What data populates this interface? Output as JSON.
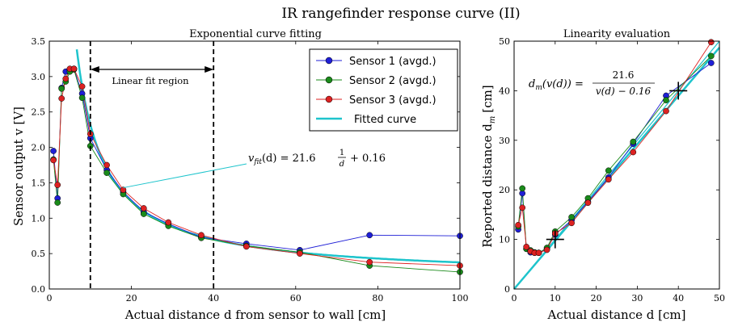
{
  "figure": {
    "title": "IR rangefinder response curve (II)"
  },
  "colors": {
    "s1": "#1f1fd6",
    "s2": "#1a8a1a",
    "s3": "#dd2222",
    "fit": "#1ec4cc",
    "grid": "#000000"
  },
  "chart_data": [
    {
      "type": "line",
      "title": "Exponential curve fitting",
      "xlabel": "Actual distance d from sensor to wall [cm]",
      "ylabel": "Sensor output v [V]",
      "xlim": [
        0,
        100
      ],
      "ylim": [
        0,
        3.5
      ],
      "xticks": [
        0,
        20,
        40,
        60,
        80,
        100
      ],
      "yticks": [
        0.0,
        0.5,
        1.0,
        1.5,
        2.0,
        2.5,
        3.0,
        3.5
      ],
      "ytick_labels": [
        "0.0",
        "0.5",
        "1.0",
        "1.5",
        "2.0",
        "2.5",
        "3.0",
        "3.5"
      ],
      "legend": [
        "Sensor 1 (avgd.)",
        "Sensor 2 (avgd.)",
        "Sensor 3 (avgd.)",
        "Fitted curve"
      ],
      "x": [
        1,
        2,
        3,
        4,
        5,
        6,
        8,
        10,
        14,
        18,
        23,
        29,
        37,
        48,
        61,
        78,
        100
      ],
      "series": [
        {
          "name": "Sensor 1 (avgd.)",
          "values": [
            1.95,
            1.28,
            2.84,
            3.07,
            3.1,
            3.11,
            2.76,
            2.13,
            1.68,
            1.37,
            1.09,
            0.92,
            0.73,
            0.64,
            0.55,
            0.76,
            0.75
          ]
        },
        {
          "name": "Sensor 2 (avgd.)",
          "values": [
            1.83,
            1.22,
            2.83,
            2.93,
            3.07,
            3.1,
            2.7,
            2.02,
            1.64,
            1.34,
            1.06,
            0.89,
            0.72,
            0.61,
            0.52,
            0.33,
            0.24
          ]
        },
        {
          "name": "Sensor 3 (avgd.)",
          "values": [
            1.82,
            1.47,
            2.69,
            2.97,
            3.11,
            3.11,
            2.86,
            2.19,
            1.75,
            1.4,
            1.14,
            0.94,
            0.76,
            0.6,
            0.5,
            0.38,
            0.33
          ]
        }
      ],
      "fit": {
        "name": "Fitted curve",
        "a": 21.6,
        "b": 0.16,
        "x_start": 6.2
      },
      "vlines": [
        10,
        40
      ],
      "region_label": "Linear fit region",
      "fit_annotation": {
        "prefix": "v",
        "subscript": "fit",
        "mid": "(d) = 21.6",
        "numerator": "1",
        "denominator": "d",
        "suffix": "+ 0.16",
        "point": [
          18,
          1.43
        ]
      }
    },
    {
      "type": "line",
      "title": "Linearity evaluation",
      "xlabel": "Actual distance d [cm]",
      "ylabel": "Reported distance d",
      "ylabel_subscript": "m",
      "ylabel_suffix": "[cm]",
      "xlim": [
        0,
        50
      ],
      "ylim": [
        0,
        50
      ],
      "xticks": [
        0,
        10,
        20,
        30,
        40,
        50
      ],
      "yticks": [
        0,
        10,
        20,
        30,
        40,
        50
      ],
      "x": [
        1,
        2,
        3,
        4,
        5,
        6,
        8,
        10,
        14,
        18,
        23,
        29,
        37,
        48
      ],
      "series": [
        {
          "name": "Sensor 1",
          "values": [
            12.0,
            19.3,
            8.1,
            7.4,
            7.3,
            7.3,
            8.1,
            11.0,
            13.9,
            17.6,
            22.5,
            29.3,
            39.0,
            45.6
          ]
        },
        {
          "name": "Sensor 2",
          "values": [
            12.6,
            20.3,
            8.1,
            7.8,
            7.4,
            7.3,
            8.3,
            11.6,
            14.5,
            18.3,
            23.9,
            29.7,
            38.1,
            47.0
          ]
        },
        {
          "name": "Sensor 3",
          "values": [
            12.9,
            16.4,
            8.5,
            7.6,
            7.3,
            7.3,
            7.9,
            11.2,
            13.3,
            17.4,
            22.1,
            27.6,
            35.9,
            49.8
          ]
        }
      ],
      "identity_line": [
        [
          0,
          0
        ],
        [
          50,
          50
        ]
      ],
      "fit_line": [
        [
          0,
          0
        ],
        [
          50,
          48.7
        ]
      ],
      "markers": [
        [
          10,
          10
        ],
        [
          40,
          40
        ]
      ],
      "formula": {
        "lhs": "d",
        "lhs_sub": "m",
        "lhs_rest": "(v(d)) =",
        "numerator": "21.6",
        "denominator": "v(d) − 0.16"
      }
    }
  ]
}
